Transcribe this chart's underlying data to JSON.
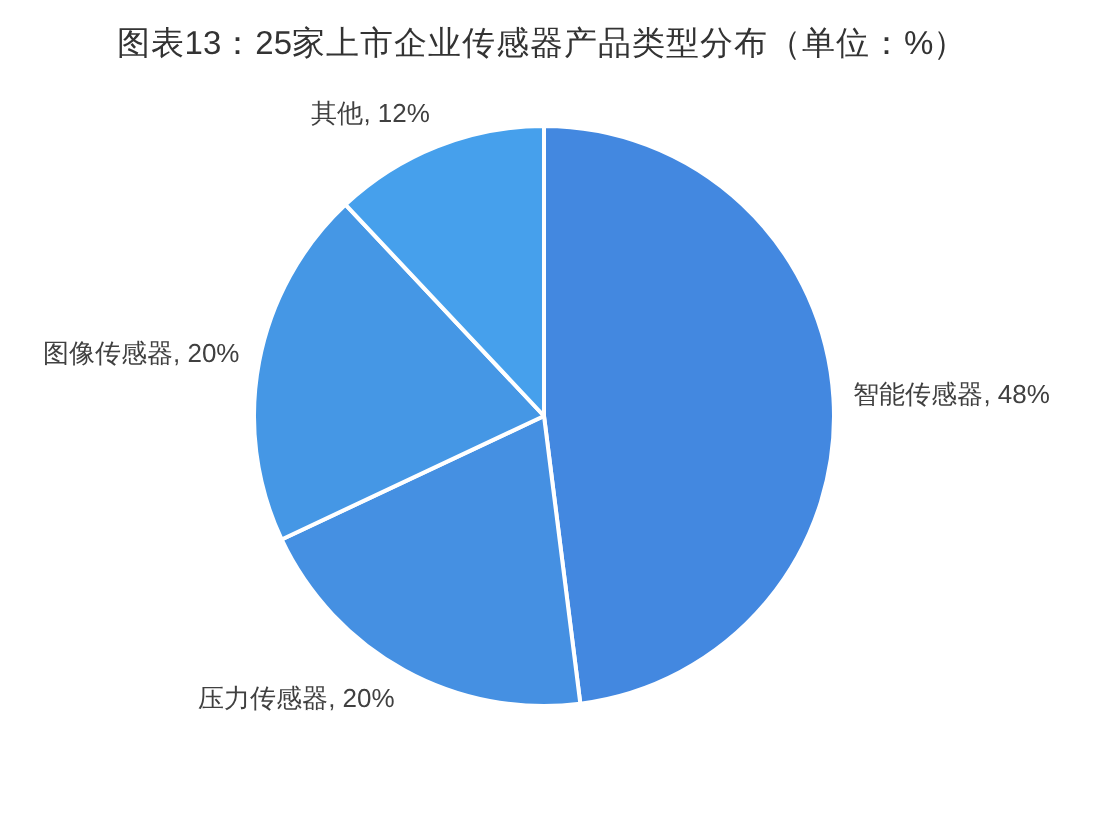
{
  "chart_data": {
    "type": "pie",
    "title": "图表13：25家上市企业传感器产品类型分布（单位：%）",
    "categories": [
      "智能传感器",
      "压力传感器",
      "图像传感器",
      "其他"
    ],
    "values": [
      48,
      20,
      20,
      12
    ],
    "colors": [
      "#4388e0",
      "#4590e2",
      "#4597e5",
      "#46a0ec"
    ],
    "value_labels": [
      "48%",
      "20%",
      "20%",
      "12%"
    ]
  }
}
